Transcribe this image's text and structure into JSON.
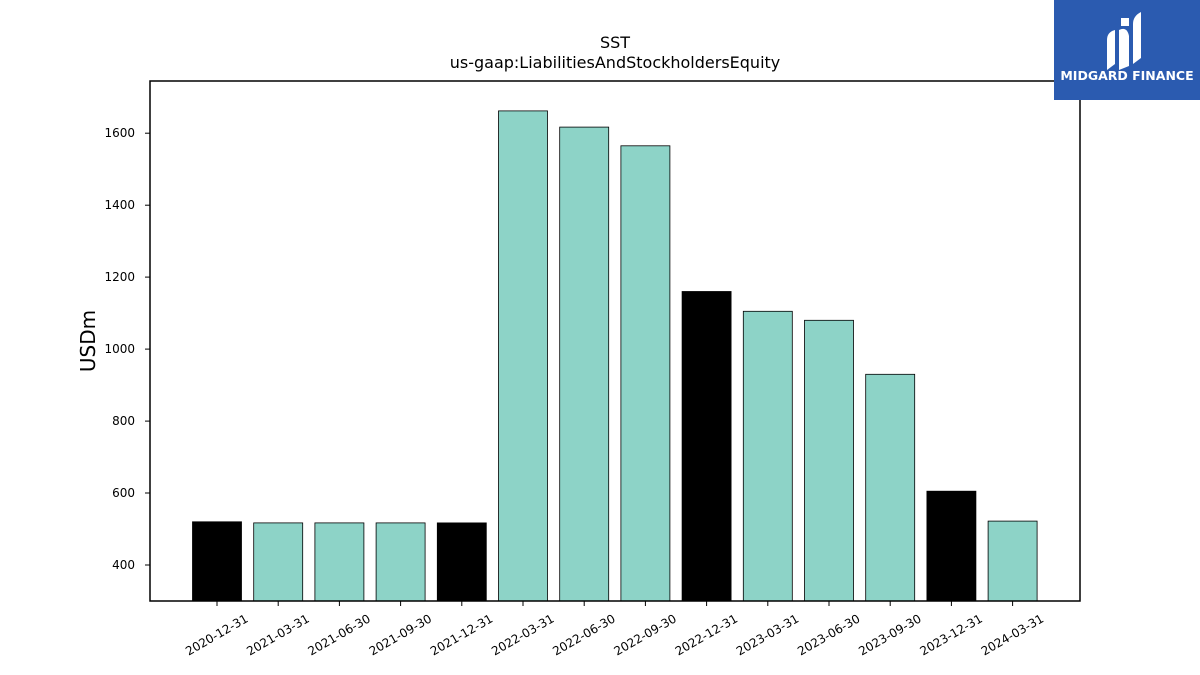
{
  "chart_data": {
    "type": "bar",
    "title": "SST",
    "subtitle": "us-gaap:LiabilitiesAndStockholdersEquity",
    "xlabel": "",
    "ylabel": "USDm",
    "ylim": [
      300,
      1745
    ],
    "yticks": [
      400,
      600,
      800,
      1000,
      1200,
      1400,
      1600
    ],
    "categories": [
      "2020-12-31",
      "2021-03-31",
      "2021-06-30",
      "2021-09-30",
      "2021-12-31",
      "2022-03-31",
      "2022-06-30",
      "2022-09-30",
      "2022-12-31",
      "2023-03-31",
      "2023-06-30",
      "2023-09-30",
      "2023-12-31",
      "2024-03-31"
    ],
    "values": [
      520,
      517,
      517,
      517,
      517,
      1662,
      1617,
      1565,
      1160,
      1105,
      1080,
      930,
      605,
      522
    ],
    "bar_colors": [
      "#000000",
      "#8dd3c7",
      "#8dd3c7",
      "#8dd3c7",
      "#000000",
      "#8dd3c7",
      "#8dd3c7",
      "#8dd3c7",
      "#000000",
      "#8dd3c7",
      "#8dd3c7",
      "#8dd3c7",
      "#000000",
      "#8dd3c7"
    ],
    "grid": false,
    "legend": "none"
  },
  "logo": {
    "text": "MIDGARD FINANCE",
    "background": "#2b5bb0",
    "icon": "midgard-logo-icon"
  }
}
